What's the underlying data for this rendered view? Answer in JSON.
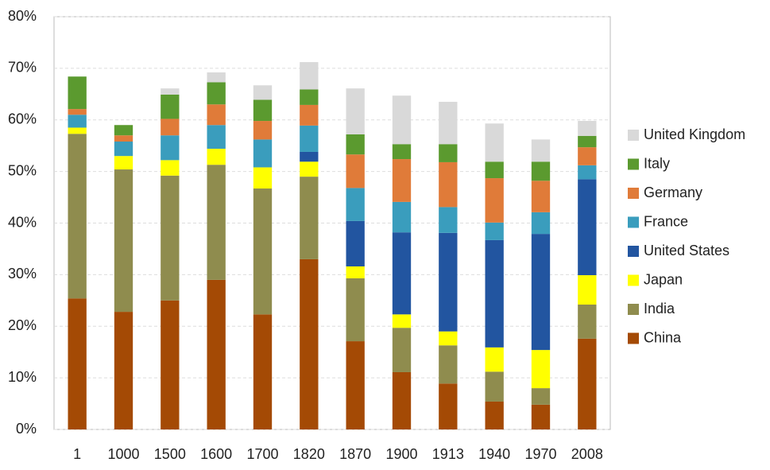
{
  "chart_data": {
    "type": "stacked-bar",
    "categories": [
      "1",
      "1000",
      "1500",
      "1600",
      "1700",
      "1820",
      "1870",
      "1900",
      "1913",
      "1940",
      "1970",
      "2008"
    ],
    "series": [
      {
        "name": "China",
        "color": "#a44a05",
        "values": [
          25.4,
          22.8,
          25,
          29,
          22.3,
          33,
          17.1,
          11.1,
          8.9,
          5.4,
          4.8,
          17.6
        ]
      },
      {
        "name": "India",
        "color": "#8f8c4e",
        "values": [
          31.9,
          27.6,
          24.2,
          22.3,
          24.4,
          16,
          12.2,
          8.6,
          7.4,
          5.8,
          3.2,
          6.6
        ]
      },
      {
        "name": "Japan",
        "color": "#ffff00",
        "values": [
          1.2,
          2.6,
          3,
          3.1,
          4.1,
          2.9,
          2.3,
          2.6,
          2.7,
          4.7,
          7.4,
          5.7
        ]
      },
      {
        "name": "United States",
        "color": "#2255a0",
        "values": [
          0,
          0,
          0,
          0,
          0,
          1.9,
          8.8,
          15.9,
          19.1,
          20.8,
          22.5,
          18.6
        ]
      },
      {
        "name": "France",
        "color": "#3a9dbd",
        "values": [
          2.5,
          2.8,
          4.8,
          4.6,
          5.4,
          5.1,
          6.4,
          5.9,
          5,
          3.4,
          4.2,
          2.7
        ]
      },
      {
        "name": "Germany",
        "color": "#e07b39",
        "values": [
          1.1,
          1.2,
          3.2,
          4,
          3.6,
          4,
          6.5,
          8.3,
          8.7,
          8.6,
          6.1,
          3.5
        ]
      },
      {
        "name": "Italy",
        "color": "#5b9a2f",
        "values": [
          6.3,
          2,
          4.7,
          4.3,
          4.1,
          3,
          3.9,
          2.9,
          3.5,
          3.2,
          3.7,
          2.2
        ]
      },
      {
        "name": "United Kingdom",
        "color": "#d9d9d9",
        "values": [
          0,
          0,
          1.2,
          1.9,
          2.8,
          5.3,
          8.9,
          9.4,
          8.2,
          7.4,
          4.3,
          2.9
        ]
      }
    ],
    "ylim": [
      0,
      80
    ],
    "yticks": [
      {
        "value": 0,
        "label": "0%"
      },
      {
        "value": 10,
        "label": "10%"
      },
      {
        "value": 20,
        "label": "20%"
      },
      {
        "value": 30,
        "label": "30%"
      },
      {
        "value": 40,
        "label": "40%"
      },
      {
        "value": 50,
        "label": "50%"
      },
      {
        "value": 60,
        "label": "60%"
      },
      {
        "value": 70,
        "label": "70%"
      },
      {
        "value": 80,
        "label": "80%"
      }
    ],
    "grid": true,
    "legend": "right"
  }
}
